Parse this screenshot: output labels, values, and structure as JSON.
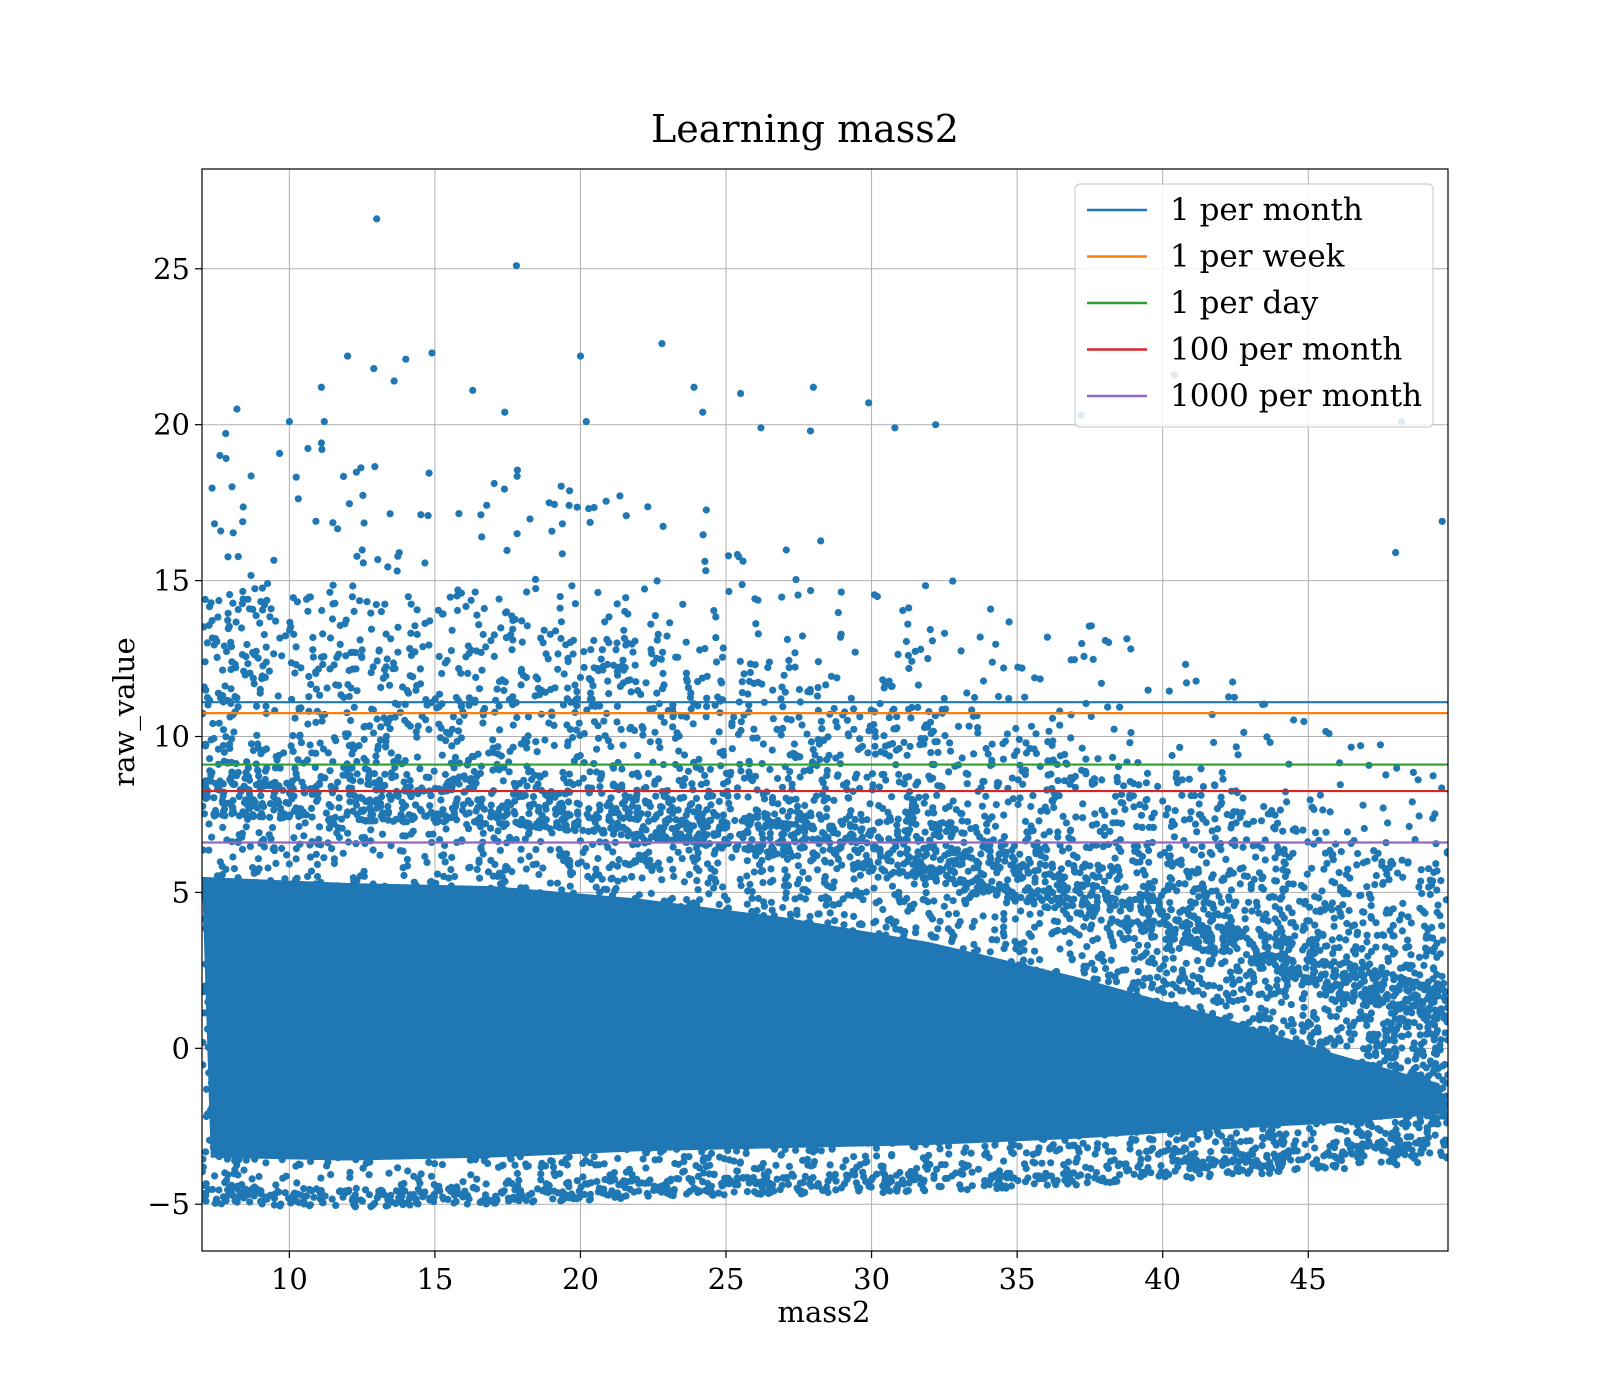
{
  "chart_data": {
    "type": "scatter",
    "title": "Learning mass2",
    "xlabel": "mass2",
    "ylabel": "raw_value",
    "xlim": [
      7.0,
      49.8
    ],
    "ylim": [
      -6.5,
      28.2
    ],
    "xticks": [
      10,
      15,
      20,
      25,
      30,
      35,
      40,
      45
    ],
    "xtick_labels": [
      "10",
      "15",
      "20",
      "25",
      "30",
      "35",
      "40",
      "45"
    ],
    "yticks": [
      -5,
      0,
      5,
      10,
      15,
      20,
      25
    ],
    "ytick_labels": [
      "−5",
      "0",
      "5",
      "10",
      "15",
      "20",
      "25"
    ],
    "grid": true,
    "legend_position": "top-right",
    "scatter_series": {
      "color": "#1f77b4",
      "outlier_points": [
        [
          13.0,
          26.6
        ],
        [
          17.8,
          25.1
        ],
        [
          22.8,
          22.6
        ],
        [
          20.0,
          22.2
        ],
        [
          14.0,
          22.1
        ],
        [
          12.0,
          22.2
        ],
        [
          14.9,
          22.3
        ],
        [
          12.9,
          21.8
        ],
        [
          40.4,
          21.6
        ],
        [
          11.1,
          21.2
        ],
        [
          16.3,
          21.1
        ],
        [
          23.9,
          21.2
        ],
        [
          25.5,
          21.0
        ],
        [
          28.0,
          21.2
        ],
        [
          13.6,
          21.4
        ],
        [
          8.2,
          20.5
        ],
        [
          10.0,
          20.1
        ],
        [
          11.2,
          20.1
        ],
        [
          20.2,
          20.1
        ],
        [
          24.2,
          20.4
        ],
        [
          29.9,
          20.7
        ],
        [
          32.2,
          20.0
        ],
        [
          37.2,
          20.3
        ],
        [
          48.2,
          20.1
        ],
        [
          17.4,
          20.4
        ],
        [
          26.2,
          19.9
        ],
        [
          30.8,
          19.9
        ],
        [
          27.9,
          19.8
        ],
        [
          49.6,
          16.9
        ],
        [
          48.0,
          15.9
        ]
      ],
      "density_profile": [
        {
          "x": 7,
          "y_low": -4.4,
          "y_high": 8.5
        },
        {
          "x": 12,
          "y_low": -4.5,
          "y_high": 8.3
        },
        {
          "x": 17,
          "y_low": -4.4,
          "y_high": 8.2
        },
        {
          "x": 22,
          "y_low": -4.2,
          "y_high": 7.8
        },
        {
          "x": 27,
          "y_low": -4.1,
          "y_high": 7.2
        },
        {
          "x": 32,
          "y_low": -4.0,
          "y_high": 6.4
        },
        {
          "x": 37,
          "y_low": -3.8,
          "y_high": 5.3
        },
        {
          "x": 42,
          "y_low": -3.5,
          "y_high": 4.0
        },
        {
          "x": 46,
          "y_low": -3.3,
          "y_high": 2.8
        },
        {
          "x": 49.8,
          "y_low": -3.0,
          "y_high": 1.8
        }
      ]
    },
    "hlines": [
      {
        "name": "1 per month",
        "y": 11.1,
        "color": "#1f77b4"
      },
      {
        "name": "1 per week",
        "y": 10.75,
        "color": "#ff7f0e"
      },
      {
        "name": "1 per day",
        "y": 9.1,
        "color": "#2ca02c"
      },
      {
        "name": "100 per month",
        "y": 8.25,
        "color": "#d62728"
      },
      {
        "name": "1000 per month",
        "y": 6.6,
        "color": "#9467bd"
      }
    ]
  }
}
